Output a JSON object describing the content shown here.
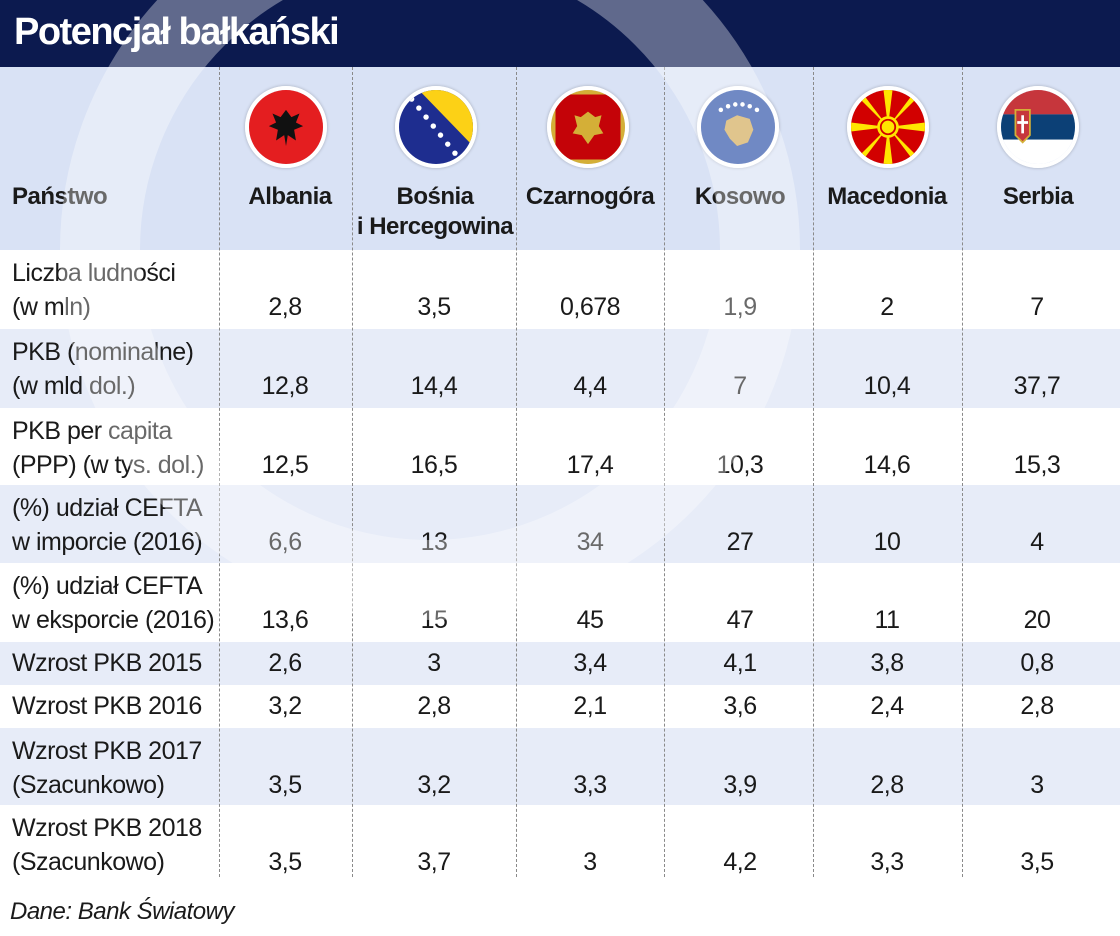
{
  "title": "Potencjał bałkański",
  "header": {
    "label": "Państwo",
    "countries": [
      {
        "name_line1": "Albania",
        "name_line2": "",
        "flag": "albania-flag"
      },
      {
        "name_line1": "Bośnia",
        "name_line2": "i Hercegowina",
        "flag": "bosnia-flag"
      },
      {
        "name_line1": "Czarnogóra",
        "name_line2": "",
        "flag": "montenegro-flag"
      },
      {
        "name_line1": "Kosowo",
        "name_line2": "",
        "flag": "kosovo-flag"
      },
      {
        "name_line1": "Macedonia",
        "name_line2": "",
        "flag": "macedonia-flag"
      },
      {
        "name_line1": "Serbia",
        "name_line2": "",
        "flag": "serbia-flag"
      }
    ]
  },
  "rows": [
    {
      "l1": "Liczba ludności",
      "l2": "(w mln)",
      "values": [
        "2,8",
        "3,5",
        "0,678",
        "1,9",
        "2",
        "7"
      ]
    },
    {
      "l1": "PKB (nominalne)",
      "l2": "(w mld dol.)",
      "values": [
        "12,8",
        "14,4",
        "4,4",
        "7",
        "10,4",
        "37,7"
      ]
    },
    {
      "l1": "PKB per capita",
      "l2": "(PPP) (w tys. dol.)",
      "values": [
        "12,5",
        "16,5",
        "17,4",
        "10,3",
        "14,6",
        "15,3"
      ]
    },
    {
      "l1": "(%) udział CEFTA",
      "l2": "w imporcie (2016)",
      "values": [
        "6,6",
        "13",
        "34",
        "27",
        "10",
        "4"
      ]
    },
    {
      "l1": "(%) udział CEFTA",
      "l2": "w eksporcie (2016)",
      "values": [
        "13,6",
        "15",
        "45",
        "47",
        "11",
        "20"
      ]
    },
    {
      "l1": "Wzrost PKB 2015",
      "l2": "",
      "values": [
        "2,6",
        "3",
        "3,4",
        "4,1",
        "3,8",
        "0,8"
      ]
    },
    {
      "l1": "Wzrost PKB 2016",
      "l2": "",
      "values": [
        "3,2",
        "2,8",
        "2,1",
        "3,6",
        "2,4",
        "2,8"
      ]
    },
    {
      "l1": "Wzrost PKB 2017",
      "l2": "(Szacunkowo)",
      "values": [
        "3,5",
        "3,2",
        "3,3",
        "3,9",
        "2,8",
        "3"
      ]
    },
    {
      "l1": "Wzrost PKB 2018",
      "l2": "(Szacunkowo)",
      "values": [
        "3,5",
        "3,7",
        "3",
        "4,2",
        "3,3",
        "3,5"
      ]
    }
  ],
  "source": "Dane: Bank Światowy",
  "colors": {
    "title_bg": "#0c1a4f",
    "header_bg": "#d9e2f5",
    "stripe": "#e7ecf8"
  }
}
